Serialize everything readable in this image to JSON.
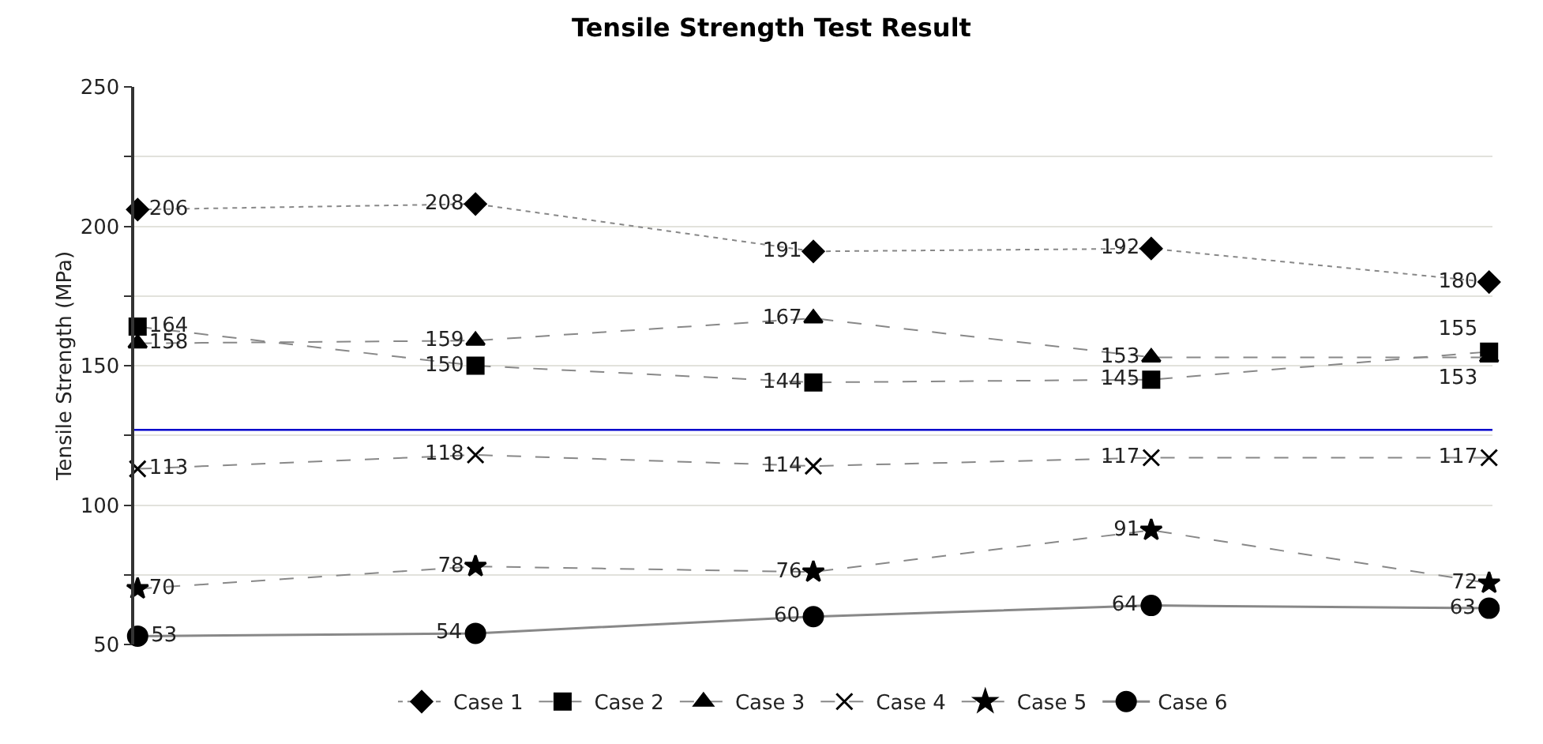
{
  "chart_data": {
    "type": "line",
    "title": "Tensile Strength Test Result",
    "ylabel": "Tensile Strength (MPa)",
    "categories": [
      null,
      null,
      null,
      null,
      null
    ],
    "series": [
      {
        "name": "Case 1",
        "color": "#000000",
        "marker": "diamond",
        "line_style": "dotted",
        "values": [
          206,
          208,
          191,
          192,
          180
        ]
      },
      {
        "name": "Case 2",
        "color": "#000000",
        "marker": "square",
        "line_style": "dashed",
        "values": [
          164,
          150,
          144,
          145,
          155
        ]
      },
      {
        "name": "Case 3",
        "color": "#000000",
        "marker": "triangle",
        "line_style": "dashed",
        "values": [
          158,
          159,
          167,
          153,
          153
        ]
      },
      {
        "name": "Case 4",
        "color": "#000000",
        "marker": "cross",
        "line_style": "dashed",
        "values": [
          113,
          118,
          114,
          117,
          117
        ]
      },
      {
        "name": "Case 5",
        "color": "#000000",
        "marker": "star",
        "line_style": "dashed",
        "values": [
          70,
          78,
          76,
          91,
          72
        ]
      },
      {
        "name": "Case 6",
        "color": "#000000",
        "marker": "circle",
        "line_style": "solid",
        "values": [
          53,
          54,
          60,
          64,
          63
        ]
      }
    ],
    "ylim": [
      50,
      250
    ],
    "yticks": [
      50,
      {
        "value": 75,
        "label": null
      },
      100,
      {
        "value": 125,
        "label": null
      },
      150,
      {
        "value": 175,
        "label": null
      },
      200,
      {
        "value": 225,
        "label": null
      },
      250
    ],
    "ref_lines": [
      {
        "axis": "y",
        "value": 127,
        "label": null,
        "color": "#0000cc",
        "line_style": "solid"
      }
    ],
    "grid": "y",
    "legend": "bottom",
    "data_labels": true
  }
}
